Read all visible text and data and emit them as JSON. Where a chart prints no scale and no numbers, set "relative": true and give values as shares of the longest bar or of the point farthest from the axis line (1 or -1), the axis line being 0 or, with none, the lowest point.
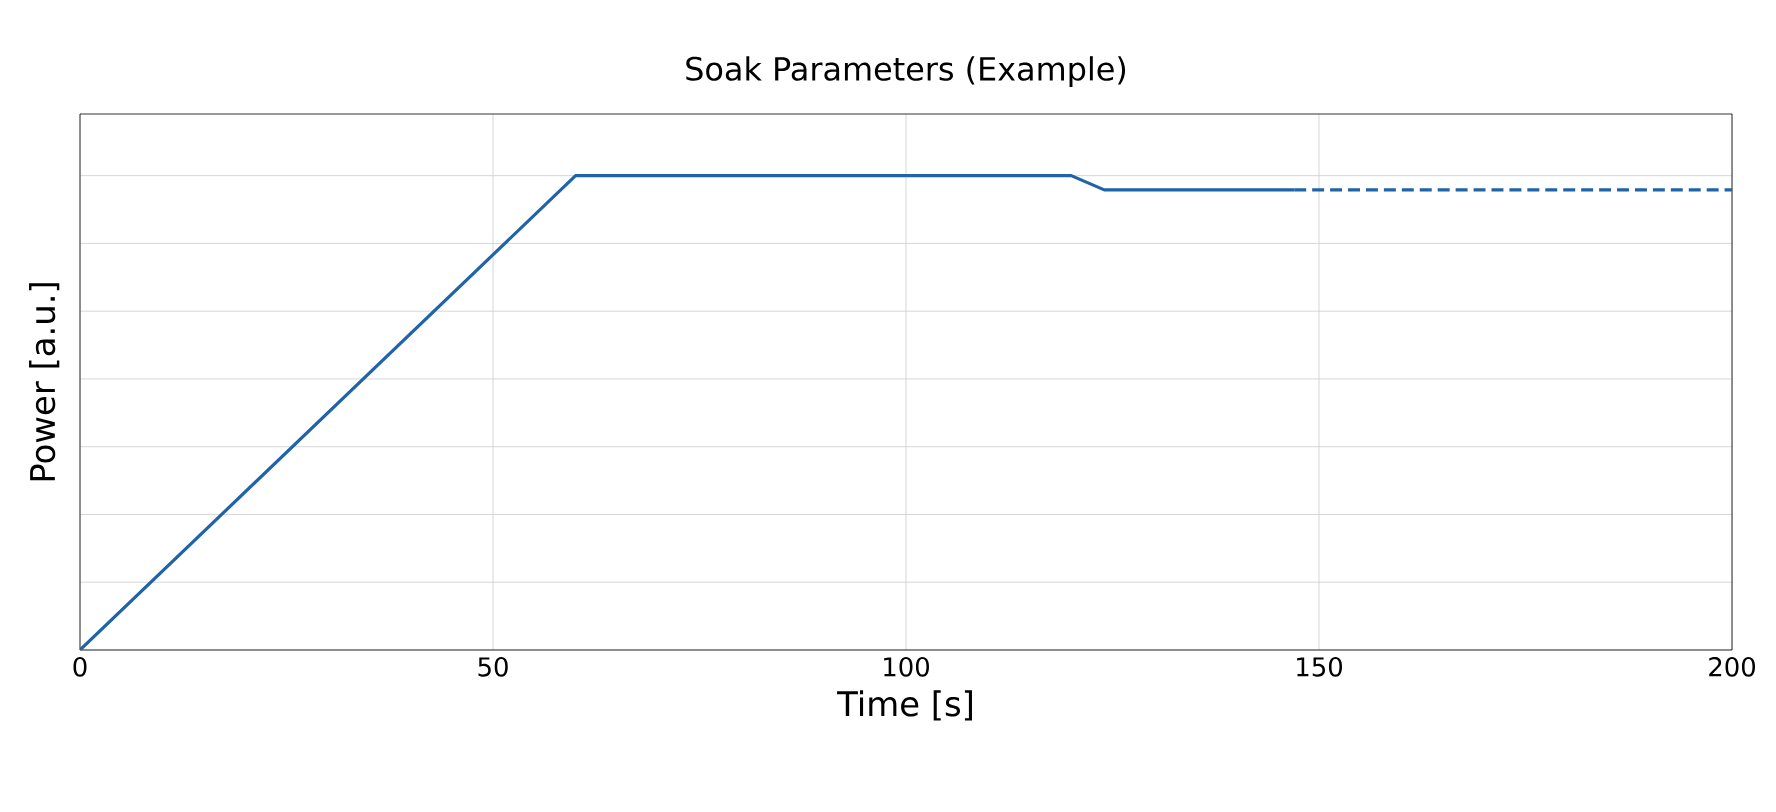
{
  "chart_data": {
    "type": "line",
    "title": "Soak Parameters (Example)",
    "xlabel": "Time [s]",
    "ylabel": "Power [a.u.]",
    "relative": true,
    "xlim": [
      0,
      200
    ],
    "xticks": [
      0,
      50,
      100,
      150,
      200
    ],
    "grid": true,
    "marker": "none",
    "series": [
      {
        "color": "#1f63a8",
        "line_style": "solid",
        "x": [
          0,
          60,
          120,
          124,
          147
        ],
        "values": [
          0,
          1,
          1,
          0.97,
          0.97
        ]
      },
      {
        "color": "#1f63a8",
        "line_style": "dashed",
        "x": [
          147,
          200
        ],
        "values": [
          0.97,
          0.97
        ]
      }
    ]
  }
}
